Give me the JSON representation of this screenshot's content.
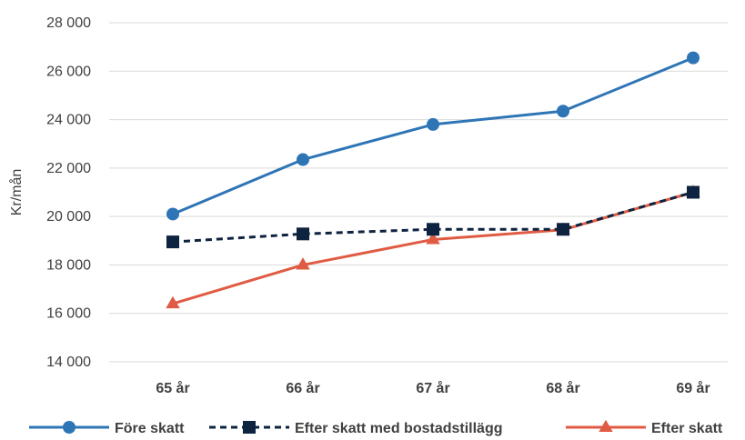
{
  "chart_data": {
    "type": "line",
    "title": "",
    "xlabel": "",
    "ylabel": "Kr/mån",
    "ylim": [
      14000,
      28000
    ],
    "yticks": [
      14000,
      16000,
      18000,
      20000,
      22000,
      24000,
      26000,
      28000
    ],
    "ytick_labels": [
      "14 000",
      "16 000",
      "18 000",
      "20 000",
      "22 000",
      "24 000",
      "26 000",
      "28 000"
    ],
    "categories": [
      "65 år",
      "66 år",
      "67 år",
      "68 år",
      "69 år"
    ],
    "grid": true,
    "legend_position": "bottom",
    "series": [
      {
        "name": "Före skatt",
        "values": [
          20100,
          22350,
          23800,
          24350,
          26550
        ],
        "color": "#2e75b6",
        "marker": "circle",
        "dash": "solid"
      },
      {
        "name": "Efter skatt med bostadstillägg",
        "values": [
          18950,
          19280,
          19470,
          19470,
          21000
        ],
        "color": "#0d2340",
        "marker": "square",
        "dash": "dashed"
      },
      {
        "name": "Efter skatt",
        "values": [
          16400,
          18000,
          19050,
          19450,
          21000
        ],
        "color": "#e05b43",
        "marker": "triangle",
        "dash": "solid"
      }
    ]
  }
}
